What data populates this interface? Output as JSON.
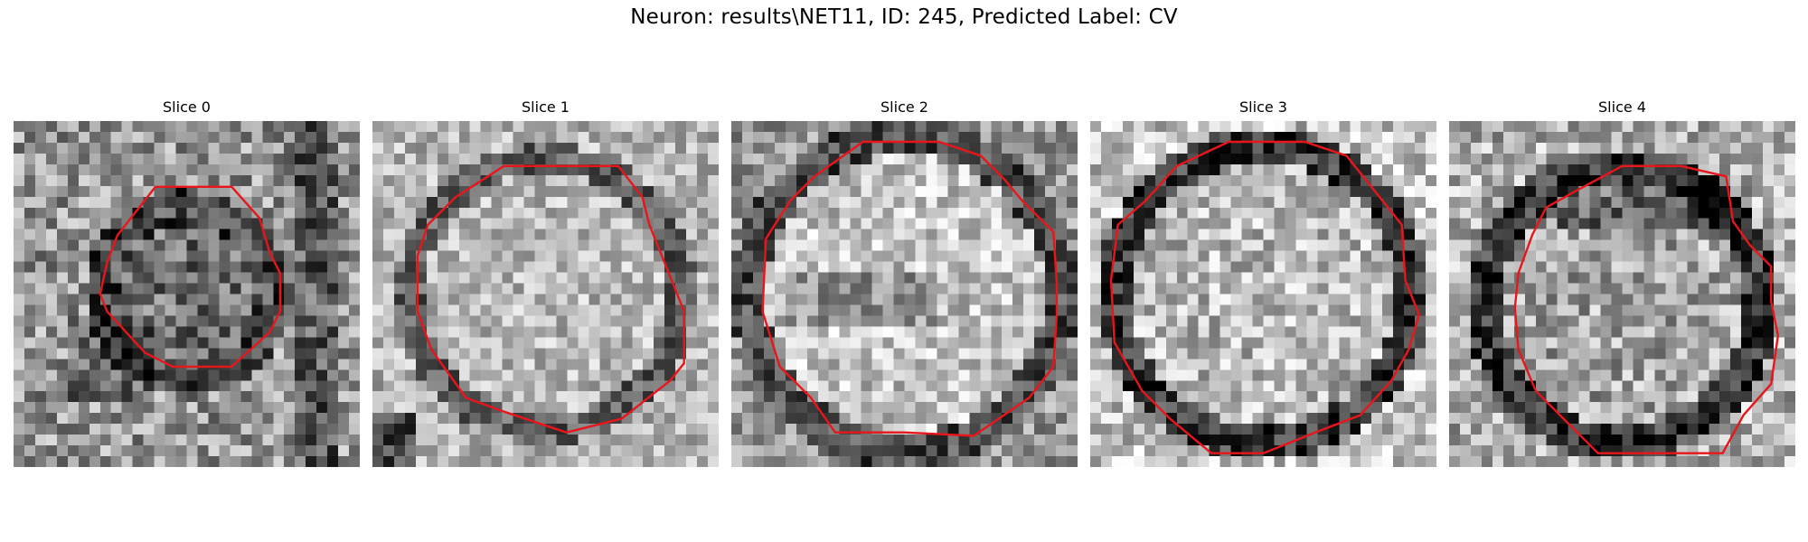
{
  "figure": {
    "title": "Neuron: results\\NET11, ID: 245, Predicted Label: CV"
  },
  "colors": {
    "contour": "#e8161b",
    "background": "#ffffff"
  },
  "panels": [
    {
      "title": "Slice 0"
    },
    {
      "title": "Slice 1"
    },
    {
      "title": "Slice 2"
    },
    {
      "title": "Slice 3"
    },
    {
      "title": "Slice 4"
    }
  ]
}
